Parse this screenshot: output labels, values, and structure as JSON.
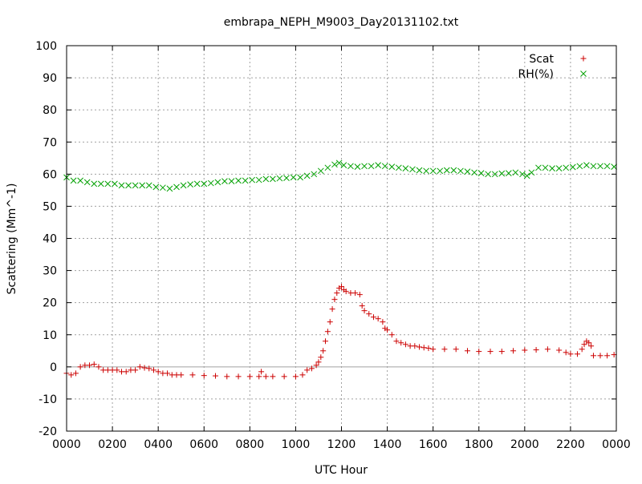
{
  "chart_data": {
    "type": "scatter",
    "title": "embrapa_NEPH_M9003_Day20131102.txt",
    "xlabel": "UTC Hour",
    "ylabel": "Scattering (Mm^-1)",
    "xlim": [
      0,
      24
    ],
    "ylim": [
      -20,
      100
    ],
    "grid": true,
    "legend_position": "top-right",
    "x_tick_labels": [
      "0000",
      "0200",
      "0400",
      "0600",
      "0800",
      "1000",
      "1200",
      "1400",
      "1600",
      "1800",
      "2000",
      "2200",
      "0000"
    ],
    "y_tick_values": [
      -20,
      -10,
      0,
      10,
      20,
      30,
      40,
      50,
      60,
      70,
      80,
      90,
      100
    ],
    "zero_line": true,
    "series": [
      {
        "name": "Scat",
        "marker": "+",
        "color": "#cc0000",
        "points": [
          [
            0.0,
            -2
          ],
          [
            0.2,
            -2.5
          ],
          [
            0.4,
            -2
          ],
          [
            0.6,
            0
          ],
          [
            0.8,
            0.5
          ],
          [
            1.0,
            0.5
          ],
          [
            1.2,
            0.8
          ],
          [
            1.4,
            0
          ],
          [
            1.6,
            -1
          ],
          [
            1.8,
            -1
          ],
          [
            2.0,
            -1
          ],
          [
            2.2,
            -1
          ],
          [
            2.4,
            -1.5
          ],
          [
            2.6,
            -1.5
          ],
          [
            2.8,
            -1
          ],
          [
            3.0,
            -1
          ],
          [
            3.2,
            0
          ],
          [
            3.4,
            -0.3
          ],
          [
            3.6,
            -0.5
          ],
          [
            3.8,
            -1
          ],
          [
            4.0,
            -1.5
          ],
          [
            4.2,
            -2
          ],
          [
            4.4,
            -2
          ],
          [
            4.6,
            -2.5
          ],
          [
            4.8,
            -2.5
          ],
          [
            5.0,
            -2.5
          ],
          [
            5.5,
            -2.5
          ],
          [
            6.0,
            -2.7
          ],
          [
            6.5,
            -2.8
          ],
          [
            7.0,
            -3
          ],
          [
            7.5,
            -3
          ],
          [
            8.0,
            -3
          ],
          [
            8.4,
            -3
          ],
          [
            8.5,
            -1.5
          ],
          [
            8.7,
            -3
          ],
          [
            9.0,
            -3
          ],
          [
            9.5,
            -3
          ],
          [
            10.0,
            -3
          ],
          [
            10.3,
            -2.5
          ],
          [
            10.5,
            -1
          ],
          [
            10.7,
            -0.5
          ],
          [
            10.9,
            0.5
          ],
          [
            11.0,
            1.5
          ],
          [
            11.1,
            3
          ],
          [
            11.2,
            5
          ],
          [
            11.3,
            8
          ],
          [
            11.4,
            11
          ],
          [
            11.5,
            14
          ],
          [
            11.6,
            18
          ],
          [
            11.7,
            21
          ],
          [
            11.8,
            23
          ],
          [
            11.9,
            24.5
          ],
          [
            12.0,
            25
          ],
          [
            12.1,
            24
          ],
          [
            12.2,
            23.5
          ],
          [
            12.4,
            23
          ],
          [
            12.6,
            23
          ],
          [
            12.8,
            22.5
          ],
          [
            12.9,
            19
          ],
          [
            13.0,
            17.5
          ],
          [
            13.2,
            16.5
          ],
          [
            13.4,
            15.5
          ],
          [
            13.6,
            15
          ],
          [
            13.8,
            14
          ],
          [
            13.9,
            12
          ],
          [
            14.0,
            11.5
          ],
          [
            14.2,
            10
          ],
          [
            14.4,
            8
          ],
          [
            14.6,
            7.5
          ],
          [
            14.8,
            7
          ],
          [
            15.0,
            6.5
          ],
          [
            15.2,
            6.5
          ],
          [
            15.4,
            6.2
          ],
          [
            15.6,
            6
          ],
          [
            15.8,
            5.8
          ],
          [
            16.0,
            5.5
          ],
          [
            16.5,
            5.5
          ],
          [
            17.0,
            5.5
          ],
          [
            17.5,
            5
          ],
          [
            18.0,
            4.8
          ],
          [
            18.5,
            4.8
          ],
          [
            19.0,
            4.8
          ],
          [
            19.5,
            5
          ],
          [
            20.0,
            5.2
          ],
          [
            20.5,
            5.3
          ],
          [
            21.0,
            5.5
          ],
          [
            21.5,
            5.2
          ],
          [
            21.8,
            4.5
          ],
          [
            22.0,
            4
          ],
          [
            22.3,
            4
          ],
          [
            22.5,
            5.5
          ],
          [
            22.6,
            7
          ],
          [
            22.7,
            8
          ],
          [
            22.8,
            7.5
          ],
          [
            22.9,
            6.5
          ],
          [
            23.0,
            3.5
          ],
          [
            23.3,
            3.5
          ],
          [
            23.6,
            3.5
          ],
          [
            23.9,
            3.8
          ]
        ]
      },
      {
        "name": "RH(%)",
        "marker": "x",
        "color": "#00a000",
        "points": [
          [
            0.0,
            59
          ],
          [
            0.3,
            58
          ],
          [
            0.6,
            58
          ],
          [
            0.9,
            57.5
          ],
          [
            1.2,
            57
          ],
          [
            1.5,
            57
          ],
          [
            1.8,
            57
          ],
          [
            2.1,
            57
          ],
          [
            2.4,
            56.5
          ],
          [
            2.7,
            56.5
          ],
          [
            3.0,
            56.5
          ],
          [
            3.3,
            56.5
          ],
          [
            3.6,
            56.5
          ],
          [
            3.9,
            56
          ],
          [
            4.2,
            55.8
          ],
          [
            4.5,
            55.5
          ],
          [
            4.8,
            56
          ],
          [
            5.1,
            56.5
          ],
          [
            5.4,
            56.8
          ],
          [
            5.7,
            57
          ],
          [
            6.0,
            57
          ],
          [
            6.3,
            57.2
          ],
          [
            6.6,
            57.5
          ],
          [
            6.9,
            57.8
          ],
          [
            7.2,
            57.8
          ],
          [
            7.5,
            58
          ],
          [
            7.8,
            58
          ],
          [
            8.1,
            58.2
          ],
          [
            8.4,
            58.2
          ],
          [
            8.7,
            58.5
          ],
          [
            9.0,
            58.5
          ],
          [
            9.3,
            58.7
          ],
          [
            9.6,
            58.8
          ],
          [
            9.9,
            59
          ],
          [
            10.2,
            59
          ],
          [
            10.5,
            59.5
          ],
          [
            10.8,
            60
          ],
          [
            11.1,
            61
          ],
          [
            11.4,
            62
          ],
          [
            11.7,
            63
          ],
          [
            11.9,
            63.5
          ],
          [
            12.1,
            62.8
          ],
          [
            12.4,
            62.5
          ],
          [
            12.7,
            62.3
          ],
          [
            13.0,
            62.5
          ],
          [
            13.3,
            62.5
          ],
          [
            13.6,
            62.8
          ],
          [
            13.9,
            62.5
          ],
          [
            14.2,
            62.3
          ],
          [
            14.5,
            62
          ],
          [
            14.8,
            61.8
          ],
          [
            15.1,
            61.5
          ],
          [
            15.4,
            61.2
          ],
          [
            15.7,
            61
          ],
          [
            16.0,
            61
          ],
          [
            16.3,
            61
          ],
          [
            16.6,
            61.2
          ],
          [
            16.9,
            61.2
          ],
          [
            17.2,
            61
          ],
          [
            17.5,
            60.8
          ],
          [
            17.8,
            60.5
          ],
          [
            18.1,
            60.3
          ],
          [
            18.4,
            60
          ],
          [
            18.7,
            60
          ],
          [
            19.0,
            60.2
          ],
          [
            19.3,
            60.3
          ],
          [
            19.6,
            60.5
          ],
          [
            19.9,
            60
          ],
          [
            20.1,
            59.5
          ],
          [
            20.3,
            60.5
          ],
          [
            20.6,
            62
          ],
          [
            20.9,
            62
          ],
          [
            21.2,
            61.8
          ],
          [
            21.5,
            61.8
          ],
          [
            21.8,
            62
          ],
          [
            22.1,
            62.2
          ],
          [
            22.4,
            62.5
          ],
          [
            22.7,
            62.8
          ],
          [
            23.0,
            62.5
          ],
          [
            23.3,
            62.5
          ],
          [
            23.6,
            62.5
          ],
          [
            23.9,
            62.3
          ]
        ]
      }
    ]
  }
}
